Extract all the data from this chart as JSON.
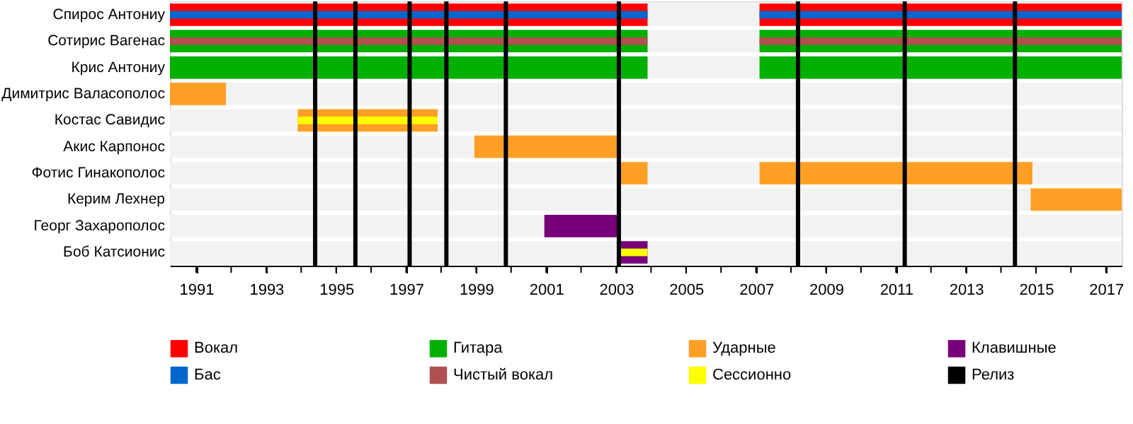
{
  "chart_data": {
    "type": "bar",
    "orientation": "horizontal",
    "categories": [
      "Спирос Антониу",
      "Сотирис Вагенас",
      "Крис Антониу",
      "Димитрис Валасополос",
      "Костас Савидис",
      "Акис Карпонос",
      "Фотис Гинакополос",
      "Керим Лехнер",
      "Георг Захарополос",
      "Боб Катсионис"
    ],
    "series": [
      {
        "name": "Вокал",
        "color": "#ff0000",
        "base": [
          1990.25,
          null,
          null,
          null,
          null,
          null,
          null,
          null,
          null,
          null
        ],
        "values": [
          13.65,
          null,
          null,
          null,
          null,
          null,
          null,
          null,
          null,
          null
        ]
      },
      {
        "color": "#ff0000",
        "base": [
          2007.1,
          null,
          null,
          null,
          null,
          null,
          null,
          null,
          null,
          null
        ],
        "values": [
          10.35,
          null,
          null,
          null,
          null,
          null,
          null,
          null,
          null,
          null
        ]
      },
      {
        "name": "Гитара",
        "color": "#00b000",
        "base": [
          null,
          1990.25,
          1990.25,
          null,
          null,
          null,
          null,
          null,
          null,
          null
        ],
        "values": [
          null,
          13.65,
          13.65,
          null,
          null,
          null,
          null,
          null,
          null,
          null
        ]
      },
      {
        "color": "#00b000",
        "base": [
          null,
          2007.1,
          2007.1,
          null,
          null,
          null,
          null,
          null,
          null,
          null
        ],
        "values": [
          null,
          10.35,
          10.35,
          null,
          null,
          null,
          null,
          null,
          null,
          null
        ]
      },
      {
        "name": "Ударные",
        "color": "#ff9f25",
        "base": [
          null,
          null,
          null,
          1990.25,
          1993.9,
          1998.95,
          2003.05,
          2014.85,
          null,
          null
        ],
        "values": [
          null,
          null,
          null,
          1.6,
          4.0,
          4.1,
          0.85,
          2.6,
          null,
          null
        ]
      },
      {
        "color": "#ff9f25",
        "base": [
          null,
          null,
          null,
          null,
          null,
          null,
          2007.1,
          null,
          null,
          null
        ],
        "values": [
          null,
          null,
          null,
          null,
          null,
          null,
          7.8,
          null,
          null,
          null
        ]
      },
      {
        "name": "Клавишные",
        "color": "#780078",
        "base": [
          null,
          null,
          null,
          null,
          null,
          null,
          null,
          null,
          2000.95,
          2003.05
        ],
        "values": [
          null,
          null,
          null,
          null,
          null,
          null,
          null,
          null,
          2.1,
          0.85
        ]
      },
      {
        "name": "Бас",
        "color": "#0066cc",
        "base": [
          1990.25,
          null,
          null,
          null,
          null,
          null,
          null,
          null,
          null,
          null
        ],
        "values": [
          13.65,
          null,
          null,
          null,
          null,
          null,
          null,
          null,
          null,
          null
        ]
      },
      {
        "color": "#0066cc",
        "base": [
          2007.1,
          null,
          null,
          null,
          null,
          null,
          null,
          null,
          null,
          null
        ],
        "values": [
          10.35,
          null,
          null,
          null,
          null,
          null,
          null,
          null,
          null,
          null
        ]
      },
      {
        "name": "Чистый вокал",
        "color": "#b05050",
        "base": [
          null,
          1990.25,
          null,
          null,
          null,
          null,
          null,
          null,
          null,
          null
        ],
        "values": [
          null,
          13.65,
          null,
          null,
          null,
          null,
          null,
          null,
          null,
          null
        ]
      },
      {
        "color": "#b05050",
        "base": [
          null,
          2007.1,
          null,
          null,
          null,
          null,
          null,
          null,
          null,
          null
        ],
        "values": [
          null,
          10.35,
          null,
          null,
          null,
          null,
          null,
          null,
          null,
          null
        ]
      },
      {
        "name": "Сессионно",
        "color": "#ffff00",
        "base": [
          null,
          null,
          null,
          null,
          1993.9,
          null,
          null,
          null,
          null,
          2003.05
        ],
        "values": [
          null,
          null,
          null,
          null,
          4.0,
          null,
          null,
          null,
          null,
          0.85
        ]
      }
    ],
    "ref_lines": [
      {
        "axis": "x",
        "value": 1994.4,
        "label": "Релиз",
        "color": "#000000"
      },
      {
        "axis": "x",
        "value": 1995.55,
        "color": "#000000"
      },
      {
        "axis": "x",
        "value": 1997.1,
        "color": "#000000"
      },
      {
        "axis": "x",
        "value": 1998.15,
        "color": "#000000"
      },
      {
        "axis": "x",
        "value": 1999.85,
        "color": "#000000"
      },
      {
        "axis": "x",
        "value": 2003.08,
        "color": "#000000"
      },
      {
        "axis": "x",
        "value": 2008.2,
        "color": "#000000"
      },
      {
        "axis": "x",
        "value": 2011.25,
        "color": "#000000"
      },
      {
        "axis": "x",
        "value": 2014.4,
        "color": "#000000"
      }
    ],
    "xlim": [
      1990.25,
      2017.45
    ],
    "xticks": [
      1991,
      {
        "value": 1992,
        "label": null
      },
      1993,
      {
        "value": 1994,
        "label": null
      },
      1995,
      {
        "value": 1996,
        "label": null
      },
      1997,
      {
        "value": 1998,
        "label": null
      },
      1999,
      {
        "value": 2000,
        "label": null
      },
      2001,
      {
        "value": 2002,
        "label": null
      },
      2003,
      {
        "value": 2004,
        "label": null
      },
      2005,
      {
        "value": 2006,
        "label": null
      },
      2007,
      {
        "value": 2008,
        "label": null
      },
      2009,
      {
        "value": 2010,
        "label": null
      },
      2011,
      {
        "value": 2012,
        "label": null
      },
      2013,
      {
        "value": 2014,
        "label": null
      },
      2015,
      {
        "value": 2016,
        "label": null
      },
      2017
    ],
    "legend": "bottom"
  }
}
